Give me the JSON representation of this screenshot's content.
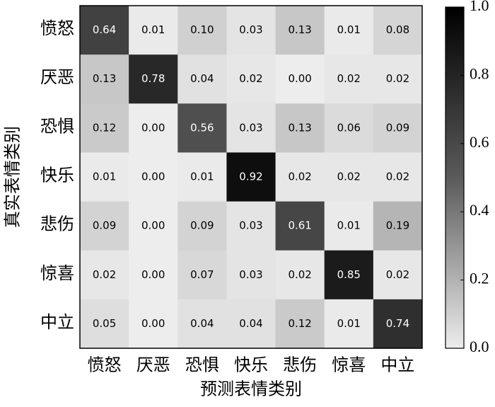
{
  "chart_data": {
    "type": "heatmap",
    "x_label": "预测表情类别",
    "y_label": "真实表情类别",
    "categories": [
      "愤怒",
      "厌恶",
      "恐惧",
      "快乐",
      "悲伤",
      "惊喜",
      "中立"
    ],
    "y_categories": [
      "愤怒",
      "厌恶",
      "恐惧",
      "快乐",
      "悲伤",
      "惊喜",
      "中立"
    ],
    "values": [
      [
        0.64,
        0.01,
        0.1,
        0.03,
        0.13,
        0.01,
        0.08
      ],
      [
        0.13,
        0.78,
        0.04,
        0.02,
        0.0,
        0.02,
        0.02
      ],
      [
        0.12,
        0.0,
        0.56,
        0.03,
        0.13,
        0.06,
        0.09
      ],
      [
        0.01,
        0.0,
        0.01,
        0.92,
        0.02,
        0.02,
        0.02
      ],
      [
        0.09,
        0.0,
        0.09,
        0.03,
        0.61,
        0.01,
        0.19
      ],
      [
        0.02,
        0.0,
        0.07,
        0.03,
        0.02,
        0.85,
        0.02
      ],
      [
        0.05,
        0.0,
        0.04,
        0.04,
        0.12,
        0.01,
        0.74
      ]
    ],
    "value_labels": [
      [
        "0.64",
        "0.01",
        "0.10",
        "0.03",
        "0.13",
        "0.01",
        "0.08"
      ],
      [
        "0.13",
        "0.78",
        "0.04",
        "0.02",
        "0.00",
        "0.02",
        "0.02"
      ],
      [
        "0.12",
        "0.00",
        "0.56",
        "0.03",
        "0.13",
        "0.06",
        "0.09"
      ],
      [
        "0.01",
        "0.00",
        "0.01",
        "0.92",
        "0.02",
        "0.02",
        "0.02"
      ],
      [
        "0.09",
        "0.00",
        "0.09",
        "0.03",
        "0.61",
        "0.01",
        "0.19"
      ],
      [
        "0.02",
        "0.00",
        "0.07",
        "0.03",
        "0.02",
        "0.85",
        "0.02"
      ],
      [
        "0.05",
        "0.00",
        "0.04",
        "0.04",
        "0.12",
        "0.01",
        "0.74"
      ]
    ],
    "colormap": [
      "#ededed",
      "#5a5a5a",
      "#000000"
    ],
    "clim": [
      0,
      1
    ],
    "colorbar_ticks": [
      {
        "value": 0,
        "label": "0.0"
      },
      0.2,
      0.4,
      0.6,
      0.8,
      {
        "value": 1,
        "label": "1.0"
      }
    ]
  }
}
